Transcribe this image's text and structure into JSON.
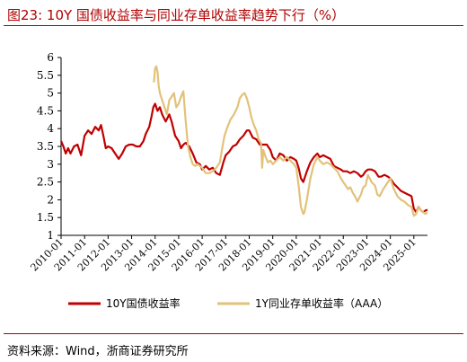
{
  "header": {
    "title": "图23:  10Y 国债收益率与同业存单收益率趋势下行（%）"
  },
  "footer": {
    "source": "资料来源：Wind，浙商证券研究所"
  },
  "chart_data": {
    "type": "line",
    "title": "",
    "xlabel": "",
    "ylabel": "",
    "ylim": [
      1,
      6
    ],
    "yticks": [
      "1",
      "1.5",
      "2",
      "2.5",
      "3",
      "3.5",
      "4",
      "4.5",
      "5",
      "5.5",
      "6"
    ],
    "xlim": [
      2010.0,
      2025.58
    ],
    "xticks": [
      "2010-01",
      "2011-01",
      "2012-01",
      "2013-01",
      "2014-01",
      "2015-01",
      "2016-01",
      "2017-01",
      "2018-01",
      "2019-01",
      "2020-01",
      "2021-01",
      "2022-01",
      "2023-01",
      "2024-01",
      "2025-01"
    ],
    "legend_position": "bottom",
    "grid": false,
    "series": [
      {
        "name": "10Y国债收益率",
        "color": "#c00000",
        "x": [
          2010.0,
          2010.1,
          2010.2,
          2010.3,
          2010.4,
          2010.55,
          2010.7,
          2010.85,
          2011.0,
          2011.15,
          2011.3,
          2011.45,
          2011.6,
          2011.7,
          2011.8,
          2011.9,
          2012.0,
          2012.15,
          2012.3,
          2012.45,
          2012.6,
          2012.75,
          2012.9,
          2013.05,
          2013.2,
          2013.35,
          2013.5,
          2013.6,
          2013.75,
          2013.85,
          2013.92,
          2014.0,
          2014.1,
          2014.2,
          2014.3,
          2014.45,
          2014.6,
          2014.7,
          2014.85,
          2015.0,
          2015.1,
          2015.2,
          2015.3,
          2015.45,
          2015.6,
          2015.75,
          2015.9,
          2016.0,
          2016.15,
          2016.3,
          2016.45,
          2016.6,
          2016.75,
          2016.9,
          2017.0,
          2017.15,
          2017.3,
          2017.45,
          2017.6,
          2017.75,
          2017.9,
          2018.0,
          2018.15,
          2018.3,
          2018.45,
          2018.6,
          2018.75,
          2018.9,
          2019.0,
          2019.15,
          2019.3,
          2019.45,
          2019.6,
          2019.75,
          2019.9,
          2020.0,
          2020.1,
          2020.2,
          2020.3,
          2020.45,
          2020.6,
          2020.75,
          2020.9,
          2021.0,
          2021.15,
          2021.3,
          2021.45,
          2021.6,
          2021.75,
          2021.9,
          2022.0,
          2022.15,
          2022.3,
          2022.45,
          2022.6,
          2022.75,
          2022.85,
          2022.95,
          2023.05,
          2023.2,
          2023.35,
          2023.5,
          2023.6,
          2023.75,
          2023.9,
          2024.0,
          2024.15,
          2024.3,
          2024.45,
          2024.6,
          2024.75,
          2024.9,
          2025.0,
          2025.1,
          2025.2,
          2025.3,
          2025.4,
          2025.5,
          2025.58
        ],
        "values": [
          3.65,
          3.5,
          3.3,
          3.45,
          3.3,
          3.5,
          3.55,
          3.25,
          3.8,
          3.95,
          3.85,
          4.05,
          3.95,
          4.1,
          3.8,
          3.45,
          3.5,
          3.45,
          3.3,
          3.15,
          3.3,
          3.5,
          3.55,
          3.55,
          3.5,
          3.5,
          3.65,
          3.85,
          4.05,
          4.35,
          4.6,
          4.7,
          4.5,
          4.6,
          4.4,
          4.2,
          4.4,
          4.2,
          3.8,
          3.65,
          3.45,
          3.55,
          3.6,
          3.5,
          3.3,
          3.05,
          3.0,
          2.85,
          2.95,
          2.85,
          2.9,
          2.75,
          2.7,
          3.05,
          3.25,
          3.35,
          3.5,
          3.55,
          3.7,
          3.8,
          3.95,
          3.95,
          3.75,
          3.7,
          3.55,
          3.55,
          3.55,
          3.4,
          3.2,
          3.1,
          3.3,
          3.25,
          3.1,
          3.2,
          3.15,
          3.1,
          2.9,
          2.6,
          2.5,
          2.8,
          3.05,
          3.2,
          3.3,
          3.2,
          3.25,
          3.2,
          3.15,
          2.95,
          2.9,
          2.85,
          2.8,
          2.8,
          2.75,
          2.8,
          2.75,
          2.65,
          2.7,
          2.8,
          2.85,
          2.85,
          2.8,
          2.65,
          2.65,
          2.7,
          2.65,
          2.6,
          2.45,
          2.35,
          2.25,
          2.2,
          2.15,
          2.1,
          1.75,
          1.65,
          1.8,
          1.7,
          1.65,
          1.7,
          1.72
        ]
      },
      {
        "name": "1Y同业存单收益率（AAA）",
        "color": "#e2c27a",
        "x": [
          2013.95,
          2014.0,
          2014.05,
          2014.1,
          2014.15,
          2014.2,
          2014.3,
          2014.4,
          2014.5,
          2014.6,
          2014.7,
          2014.8,
          2014.9,
          2015.0,
          2015.1,
          2015.2,
          2015.3,
          2015.4,
          2015.5,
          2015.6,
          2015.7,
          2015.8,
          2015.9,
          2016.0,
          2016.15,
          2016.3,
          2016.45,
          2016.6,
          2016.75,
          2016.85,
          2016.95,
          2017.05,
          2017.2,
          2017.35,
          2017.5,
          2017.6,
          2017.7,
          2017.8,
          2017.9,
          2018.0,
          2018.1,
          2018.2,
          2018.3,
          2018.4,
          2018.5,
          2018.55,
          2018.6,
          2018.7,
          2018.8,
          2018.9,
          2019.0,
          2019.15,
          2019.3,
          2019.45,
          2019.6,
          2019.75,
          2019.9,
          2020.0,
          2020.1,
          2020.2,
          2020.3,
          2020.35,
          2020.45,
          2020.6,
          2020.75,
          2020.9,
          2021.0,
          2021.15,
          2021.3,
          2021.45,
          2021.6,
          2021.75,
          2021.9,
          2022.0,
          2022.1,
          2022.2,
          2022.3,
          2022.4,
          2022.5,
          2022.6,
          2022.75,
          2022.85,
          2022.95,
          2023.05,
          2023.2,
          2023.35,
          2023.45,
          2023.55,
          2023.7,
          2023.85,
          2024.0,
          2024.15,
          2024.3,
          2024.45,
          2024.6,
          2024.75,
          2024.9,
          2025.0,
          2025.1,
          2025.2,
          2025.3,
          2025.4,
          2025.5,
          2025.58
        ],
        "values": [
          5.3,
          5.7,
          5.75,
          5.6,
          5.2,
          5.0,
          4.8,
          4.6,
          4.4,
          4.8,
          4.9,
          5.0,
          4.6,
          4.7,
          4.9,
          5.05,
          4.2,
          3.5,
          3.2,
          3.0,
          2.95,
          3.0,
          2.95,
          2.9,
          2.75,
          2.75,
          2.8,
          2.9,
          3.05,
          3.45,
          3.8,
          4.0,
          4.25,
          4.4,
          4.6,
          4.85,
          4.95,
          5.0,
          4.85,
          4.6,
          4.3,
          4.1,
          3.95,
          3.7,
          3.6,
          2.9,
          3.4,
          3.2,
          3.05,
          3.1,
          3.0,
          3.1,
          3.2,
          3.1,
          3.2,
          3.1,
          3.0,
          2.9,
          2.4,
          1.8,
          1.6,
          1.65,
          2.0,
          2.6,
          3.0,
          3.2,
          3.1,
          3.0,
          3.05,
          3.0,
          2.9,
          2.8,
          2.6,
          2.5,
          2.4,
          2.3,
          2.35,
          2.2,
          2.1,
          1.95,
          2.15,
          2.35,
          2.4,
          2.7,
          2.5,
          2.4,
          2.15,
          2.1,
          2.3,
          2.45,
          2.6,
          2.3,
          2.1,
          2.0,
          1.95,
          1.85,
          1.8,
          1.55,
          1.6,
          1.8,
          1.7,
          1.65,
          1.6,
          1.65
        ]
      }
    ]
  }
}
